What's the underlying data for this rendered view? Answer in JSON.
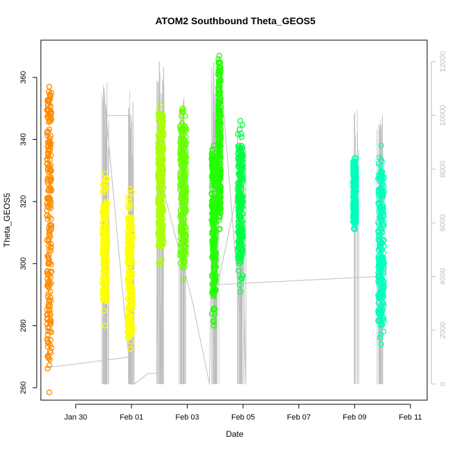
{
  "chart_data": {
    "type": "scatter",
    "title": "ATOM2 Southbound Theta_GEOS5",
    "xlabel": "Date",
    "ylabel": "Theta_GEOS5",
    "x_ticks": [
      "Jan 30",
      "Feb 01",
      "Feb 03",
      "Feb 05",
      "Feb 07",
      "Feb 09",
      "Feb 11"
    ],
    "x_tick_days": [
      1,
      3,
      5,
      7,
      9,
      11,
      13
    ],
    "y_ticks": [
      260,
      280,
      300,
      320,
      340,
      360
    ],
    "y2_ticks": [
      0,
      2000,
      4000,
      6000,
      8000,
      10000,
      12000
    ],
    "xlim_days": [
      -0.25,
      13.6
    ],
    "ylim": [
      256,
      372
    ],
    "y2lim": [
      -600,
      12800
    ],
    "series": [
      {
        "color": "#ff8c00",
        "segments": [
          {
            "x": 0.05,
            "ymin": 258.5,
            "ymax": 357,
            "dense_min": 269,
            "dense_max": 356,
            "width": 0.16
          }
        ]
      },
      {
        "color": "#ffff00",
        "segments": [
          {
            "x": 2.05,
            "ymin": 280,
            "ymax": 329,
            "dense_min": 288,
            "dense_max": 320,
            "width": 0.18
          },
          {
            "x": 2.95,
            "ymin": 272.5,
            "ymax": 324,
            "dense_min": 276,
            "dense_max": 315,
            "width": 0.18
          }
        ]
      },
      {
        "color": "#aaff00",
        "segments": [
          {
            "x": 4.05,
            "ymin": 300,
            "ymax": 351,
            "dense_min": 305,
            "dense_max": 349,
            "width": 0.2
          }
        ]
      },
      {
        "color": "#66ff00",
        "segments": [
          {
            "x": 4.85,
            "ymin": 295,
            "ymax": 350,
            "dense_min": 300,
            "dense_max": 345,
            "width": 0.22
          }
        ]
      },
      {
        "color": "#22ff00",
        "segments": [
          {
            "x": 5.95,
            "ymin": 280,
            "ymax": 338,
            "dense_min": 290,
            "dense_max": 335,
            "width": 0.16
          },
          {
            "x": 6.15,
            "ymin": 311,
            "ymax": 367,
            "dense_min": 315,
            "dense_max": 366,
            "width": 0.1
          }
        ]
      },
      {
        "color": "#00ff44",
        "segments": [
          {
            "x": 6.9,
            "ymin": 291,
            "ymax": 346,
            "dense_min": 300,
            "dense_max": 338,
            "width": 0.18
          }
        ]
      },
      {
        "color": "#00ffbb",
        "segments": [
          {
            "x": 11.0,
            "ymin": 311,
            "ymax": 334,
            "dense_min": 313,
            "dense_max": 333,
            "width": 0.12
          },
          {
            "x": 11.95,
            "ymin": 274,
            "ymax": 338,
            "dense_min": 280,
            "dense_max": 330,
            "width": 0.22
          }
        ]
      }
    ],
    "altitude_line": {
      "color": "#bdbdbd",
      "points": [
        [
          -0.1,
          600
        ],
        [
          2.9,
          1000
        ],
        [
          2.0,
          11000
        ],
        [
          2.0,
          0
        ],
        [
          2.1,
          0
        ],
        [
          2.1,
          10000
        ],
        [
          2.95,
          10000
        ],
        [
          2.95,
          0
        ],
        [
          3.05,
          0
        ],
        [
          3.05,
          10500
        ],
        [
          3.1,
          0
        ],
        [
          3.6,
          400
        ],
        [
          3.9,
          400
        ],
        [
          4.0,
          12000
        ],
        [
          4.05,
          0
        ],
        [
          4.15,
          11800
        ],
        [
          4.2,
          7000
        ],
        [
          5.2,
          3000
        ],
        [
          5.8,
          0
        ],
        [
          5.95,
          12000
        ],
        [
          6.0,
          0
        ],
        [
          6.2,
          11500
        ],
        [
          6.9,
          2500
        ],
        [
          6.9,
          8600
        ],
        [
          7.1,
          0
        ],
        [
          7.1,
          8700
        ],
        [
          6.1,
          3700
        ],
        [
          11.8,
          4000
        ],
        [
          11.9,
          0
        ],
        [
          12.0,
          10000
        ]
      ],
      "spikes_days": [
        2.0,
        2.05,
        2.1,
        2.9,
        2.95,
        3.0,
        4.0,
        4.05,
        4.1,
        4.8,
        4.85,
        4.9,
        5.95,
        6.0,
        6.05,
        6.85,
        6.9,
        6.95,
        11.05,
        11.9,
        11.95
      ],
      "spike_tops": [
        11000,
        11500,
        10000,
        10500,
        11000,
        10000,
        12100,
        11900,
        10000,
        10500,
        10800,
        10200,
        12000,
        11500,
        11000,
        10000,
        9500,
        9000,
        10200,
        10000,
        9800
      ]
    }
  }
}
